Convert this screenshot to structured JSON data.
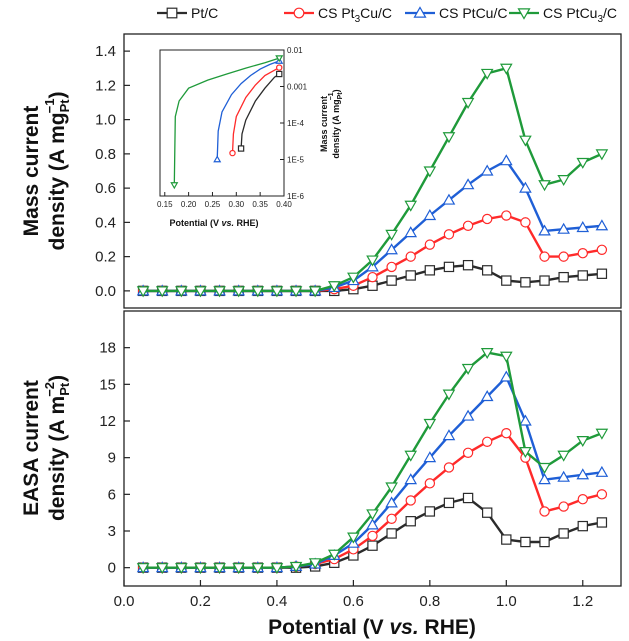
{
  "chart_data": [
    {
      "type": "line",
      "panel": "top",
      "ylabel_line1": "Mass current",
      "ylabel_line2": "density (A mg",
      "ylabel_sub": "Pt",
      "ylabel_sup": "−1",
      "ylabel_close": ")",
      "xlim": [
        0.0,
        1.3
      ],
      "ylim": [
        -0.1,
        1.5
      ],
      "yticks": [
        0.0,
        0.2,
        0.4,
        0.6,
        0.8,
        1.0,
        1.2,
        1.4
      ],
      "series": [
        {
          "name": "Pt/C",
          "color": "#2b2b2b",
          "marker": "square",
          "x": [
            0.05,
            0.1,
            0.15,
            0.2,
            0.25,
            0.3,
            0.35,
            0.4,
            0.45,
            0.5,
            0.55,
            0.6,
            0.65,
            0.7,
            0.75,
            0.8,
            0.85,
            0.9,
            0.95,
            1.0,
            1.05,
            1.1,
            1.15,
            1.2,
            1.25
          ],
          "y": [
            0,
            0,
            0,
            0,
            0,
            0,
            0,
            0,
            0,
            0,
            0,
            0.01,
            0.03,
            0.06,
            0.09,
            0.12,
            0.14,
            0.15,
            0.12,
            0.06,
            0.05,
            0.06,
            0.08,
            0.09,
            0.1
          ]
        },
        {
          "name": "CS Pt3Cu/C",
          "color": "#ff2a2a",
          "marker": "circle",
          "x": [
            0.05,
            0.1,
            0.15,
            0.2,
            0.25,
            0.3,
            0.35,
            0.4,
            0.45,
            0.5,
            0.55,
            0.6,
            0.65,
            0.7,
            0.75,
            0.8,
            0.85,
            0.9,
            0.95,
            1.0,
            1.05,
            1.1,
            1.15,
            1.2,
            1.25
          ],
          "y": [
            0,
            0,
            0,
            0,
            0,
            0,
            0,
            0,
            0,
            0,
            0.01,
            0.03,
            0.08,
            0.14,
            0.2,
            0.27,
            0.33,
            0.38,
            0.42,
            0.44,
            0.4,
            0.2,
            0.2,
            0.22,
            0.24
          ]
        },
        {
          "name": "CS PtCu/C",
          "color": "#1f5fd6",
          "marker": "triangle-up",
          "x": [
            0.05,
            0.1,
            0.15,
            0.2,
            0.25,
            0.3,
            0.35,
            0.4,
            0.45,
            0.5,
            0.55,
            0.6,
            0.65,
            0.7,
            0.75,
            0.8,
            0.85,
            0.9,
            0.95,
            1.0,
            1.05,
            1.1,
            1.15,
            1.2,
            1.25
          ],
          "y": [
            0,
            0,
            0,
            0,
            0,
            0,
            0,
            0,
            0,
            0,
            0.02,
            0.06,
            0.14,
            0.24,
            0.34,
            0.44,
            0.53,
            0.62,
            0.7,
            0.76,
            0.6,
            0.35,
            0.36,
            0.37,
            0.38
          ]
        },
        {
          "name": "CS PtCu3/C",
          "color": "#1f9a3a",
          "marker": "triangle-down",
          "x": [
            0.05,
            0.1,
            0.15,
            0.2,
            0.25,
            0.3,
            0.35,
            0.4,
            0.45,
            0.5,
            0.55,
            0.6,
            0.65,
            0.7,
            0.75,
            0.8,
            0.85,
            0.9,
            0.95,
            1.0,
            1.05,
            1.1,
            1.15,
            1.2,
            1.25
          ],
          "y": [
            0,
            0,
            0,
            0,
            0,
            0,
            0,
            0,
            0,
            0,
            0.03,
            0.08,
            0.18,
            0.33,
            0.5,
            0.7,
            0.9,
            1.1,
            1.27,
            1.3,
            0.88,
            0.62,
            0.65,
            0.75,
            0.8
          ]
        }
      ]
    },
    {
      "type": "line",
      "panel": "bottom",
      "ylabel_line1": "EASA current",
      "ylabel_line2": "density (A m",
      "ylabel_sub": "Pt",
      "ylabel_sup": "−2",
      "ylabel_close": ")",
      "xlabel_pre": "Potential (V ",
      "xlabel_it": "vs.",
      "xlabel_post": " RHE)",
      "xlim": [
        0.0,
        1.3
      ],
      "ylim": [
        -1.5,
        21
      ],
      "xticks": [
        0.0,
        0.2,
        0.4,
        0.6,
        0.8,
        1.0,
        1.2
      ],
      "yticks": [
        0,
        3,
        6,
        9,
        12,
        15,
        18
      ],
      "series": [
        {
          "name": "Pt/C",
          "color": "#2b2b2b",
          "marker": "square",
          "x": [
            0.05,
            0.1,
            0.15,
            0.2,
            0.25,
            0.3,
            0.35,
            0.4,
            0.45,
            0.5,
            0.55,
            0.6,
            0.65,
            0.7,
            0.75,
            0.8,
            0.85,
            0.9,
            0.95,
            1.0,
            1.05,
            1.1,
            1.15,
            1.2,
            1.25
          ],
          "y": [
            0,
            0,
            0,
            0,
            0,
            0,
            0,
            0,
            0,
            0.1,
            0.4,
            1.0,
            1.8,
            2.8,
            3.8,
            4.6,
            5.3,
            5.7,
            4.5,
            2.3,
            2.1,
            2.1,
            2.8,
            3.4,
            3.7
          ]
        },
        {
          "name": "CS Pt3Cu/C",
          "color": "#ff2a2a",
          "marker": "circle",
          "x": [
            0.05,
            0.1,
            0.15,
            0.2,
            0.25,
            0.3,
            0.35,
            0.4,
            0.45,
            0.5,
            0.55,
            0.6,
            0.65,
            0.7,
            0.75,
            0.8,
            0.85,
            0.9,
            0.95,
            1.0,
            1.05,
            1.1,
            1.15,
            1.2,
            1.25
          ],
          "y": [
            0,
            0,
            0,
            0,
            0,
            0,
            0,
            0,
            0.1,
            0.3,
            0.7,
            1.5,
            2.6,
            4.0,
            5.5,
            6.9,
            8.2,
            9.4,
            10.3,
            11.0,
            9.0,
            4.6,
            5.0,
            5.6,
            6.0
          ]
        },
        {
          "name": "CS PtCu/C",
          "color": "#1f5fd6",
          "marker": "triangle-up",
          "x": [
            0.05,
            0.1,
            0.15,
            0.2,
            0.25,
            0.3,
            0.35,
            0.4,
            0.45,
            0.5,
            0.55,
            0.6,
            0.65,
            0.7,
            0.75,
            0.8,
            0.85,
            0.9,
            0.95,
            1.0,
            1.05,
            1.1,
            1.15,
            1.2,
            1.25
          ],
          "y": [
            0,
            0,
            0,
            0,
            0,
            0,
            0,
            0,
            0.1,
            0.3,
            1.0,
            2.0,
            3.5,
            5.3,
            7.2,
            9.0,
            10.8,
            12.4,
            14.0,
            15.6,
            12.0,
            7.2,
            7.4,
            7.6,
            7.8
          ]
        },
        {
          "name": "CS PtCu3/C",
          "color": "#1f9a3a",
          "marker": "triangle-down",
          "x": [
            0.05,
            0.1,
            0.15,
            0.2,
            0.25,
            0.3,
            0.35,
            0.4,
            0.45,
            0.5,
            0.55,
            0.6,
            0.65,
            0.7,
            0.75,
            0.8,
            0.85,
            0.9,
            0.95,
            1.0,
            1.05,
            1.1,
            1.15,
            1.2,
            1.25
          ],
          "y": [
            0,
            0,
            0,
            0,
            0,
            0,
            0,
            0,
            0.1,
            0.4,
            1.1,
            2.5,
            4.4,
            6.6,
            9.2,
            11.8,
            14.2,
            16.3,
            17.6,
            17.3,
            9.5,
            8.2,
            9.2,
            10.4,
            11.0
          ]
        }
      ]
    },
    {
      "type": "line",
      "panel": "inset",
      "xlabel_pre": "Potential (V ",
      "xlabel_it": "vs.",
      "xlabel_post": " RHE)",
      "ylabel_line1": "Mass current",
      "ylabel_line2": "density (A mg",
      "ylabel_sub": "Pt",
      "ylabel_sup": "−1",
      "ylabel_close": ")",
      "xlim": [
        0.14,
        0.4
      ],
      "ylim_exp": [
        -6,
        -2
      ],
      "yscale": "log",
      "xticks": [
        0.15,
        0.2,
        0.25,
        0.3,
        0.35,
        0.4
      ],
      "ytick_labels": [
        "1E-6",
        "1E-5",
        "1E-4",
        "0.001",
        "0.01"
      ],
      "series": [
        {
          "name": "Pt/C",
          "color": "#2b2b2b",
          "marker": "square",
          "x": [
            0.31,
            0.312,
            0.32,
            0.34,
            0.36,
            0.38,
            0.39
          ],
          "y": [
            2e-05,
            5e-05,
            0.00012,
            0.0004,
            0.0009,
            0.0018,
            0.0022
          ]
        },
        {
          "name": "CS Pt3Cu/C",
          "color": "#ff2a2a",
          "marker": "circle",
          "x": [
            0.292,
            0.294,
            0.3,
            0.32,
            0.34,
            0.36,
            0.38,
            0.39
          ],
          "y": [
            1.5e-05,
            5e-05,
            0.00015,
            0.0005,
            0.0011,
            0.002,
            0.0028,
            0.0033
          ]
        },
        {
          "name": "CS PtCu/C",
          "color": "#1f5fd6",
          "marker": "triangle-up",
          "x": [
            0.26,
            0.262,
            0.27,
            0.29,
            0.31,
            0.33,
            0.35,
            0.37,
            0.39
          ],
          "y": [
            1e-05,
            6e-05,
            0.0002,
            0.0006,
            0.0012,
            0.002,
            0.003,
            0.004,
            0.005
          ]
        },
        {
          "name": "CS PtCu3/C",
          "color": "#1f9a3a",
          "marker": "triangle-down",
          "x": [
            0.17,
            0.172,
            0.18,
            0.2,
            0.24,
            0.28,
            0.32,
            0.36,
            0.39
          ],
          "y": [
            2e-06,
            0.00015,
            0.0004,
            0.0009,
            0.0015,
            0.0022,
            0.0032,
            0.0045,
            0.006
          ]
        }
      ]
    }
  ],
  "legend": [
    {
      "name": "Pt/C",
      "pre": "Pt/C",
      "sub": "",
      "post": "",
      "color": "#2b2b2b",
      "marker": "square"
    },
    {
      "name": "CS Pt3Cu/C",
      "pre": "CS Pt",
      "sub": "3",
      "post": "Cu/C",
      "color": "#ff2a2a",
      "marker": "circle"
    },
    {
      "name": "CS PtCu/C",
      "pre": "CS PtCu/C",
      "sub": "",
      "post": "",
      "color": "#1f5fd6",
      "marker": "triangle-up"
    },
    {
      "name": "CS PtCu3/C",
      "pre": "CS PtCu",
      "sub": "3",
      "post": "/C",
      "color": "#1f9a3a",
      "marker": "triangle-down"
    }
  ]
}
